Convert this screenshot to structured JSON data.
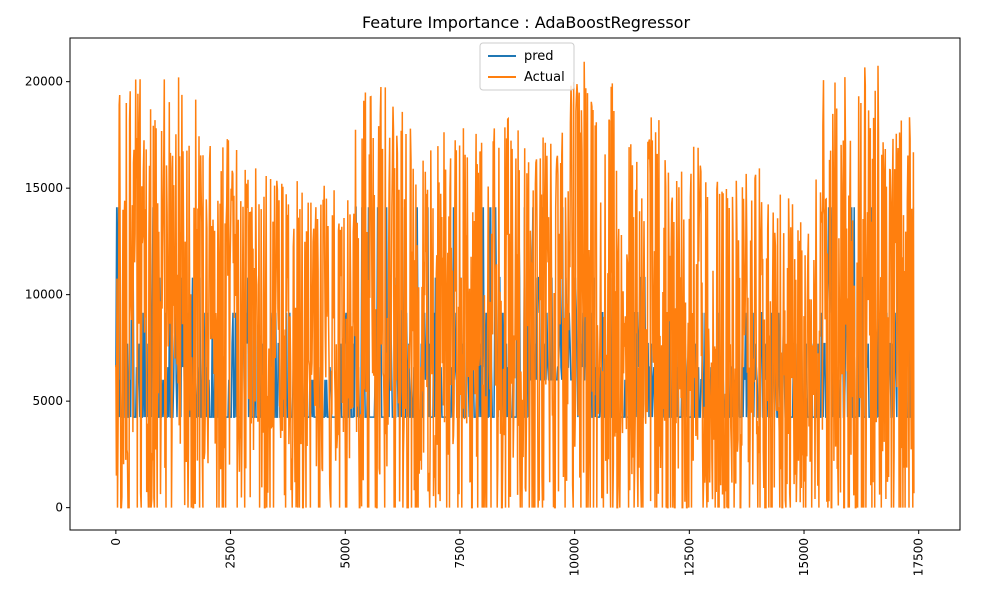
{
  "chart_data": {
    "type": "line",
    "title": "Feature Importance : AdaBoostRegressor",
    "xlabel": "",
    "ylabel": "",
    "xlim": [
      -1000,
      18400
    ],
    "ylim": [
      -1050,
      22050
    ],
    "xticks": [
      0,
      2500,
      5000,
      7500,
      10000,
      12500,
      15000,
      17500
    ],
    "xtick_labels": [
      "0",
      "2500",
      "5000",
      "7500",
      "10000",
      "12500",
      "15000",
      "17500"
    ],
    "xtick_rotation": 90,
    "yticks": [
      0,
      5000,
      10000,
      15000,
      20000
    ],
    "ytick_labels": [
      "0",
      "5000",
      "10000",
      "15000",
      "20000"
    ],
    "grid": false,
    "legend_position": "top-center",
    "n_points": 17379,
    "pred_levels": [
      4250,
      6000,
      6600,
      7700,
      9150,
      10800,
      14100
    ],
    "series": [
      {
        "name": "pred",
        "color": "#1f77b4",
        "segments": [
          {
            "start": 0,
            "end": 1400,
            "min": 4250,
            "max": 14100
          },
          {
            "start": 1400,
            "end": 3000,
            "min": 4250,
            "max": 10800
          },
          {
            "start": 3000,
            "end": 4000,
            "min": 4250,
            "max": 9150
          },
          {
            "start": 4000,
            "end": 4900,
            "min": 4250,
            "max": 6600
          },
          {
            "start": 4900,
            "end": 5200,
            "min": 4250,
            "max": 9150
          },
          {
            "start": 5200,
            "end": 9000,
            "min": 4250,
            "max": 14100
          },
          {
            "start": 9000,
            "end": 10000,
            "min": 6000,
            "max": 14100
          },
          {
            "start": 10000,
            "end": 11800,
            "min": 4250,
            "max": 10800
          },
          {
            "start": 11800,
            "end": 13600,
            "min": 4250,
            "max": 9150
          },
          {
            "start": 13600,
            "end": 15500,
            "min": 4250,
            "max": 9150
          },
          {
            "start": 15500,
            "end": 16500,
            "min": 4250,
            "max": 14100
          },
          {
            "start": 16500,
            "end": 17400,
            "min": 4250,
            "max": 14100
          }
        ]
      },
      {
        "name": "Actual",
        "color": "#ff7f0e",
        "segments": [
          {
            "start": 0,
            "end": 900,
            "min": 0,
            "max": 20600
          },
          {
            "start": 900,
            "end": 1900,
            "min": 0,
            "max": 20500
          },
          {
            "start": 1900,
            "end": 2700,
            "min": 0,
            "max": 18400
          },
          {
            "start": 2700,
            "end": 3400,
            "min": 0,
            "max": 16300
          },
          {
            "start": 3400,
            "end": 4000,
            "min": 0,
            "max": 15700
          },
          {
            "start": 4000,
            "end": 5200,
            "min": 0,
            "max": 15300
          },
          {
            "start": 5200,
            "end": 6300,
            "min": 0,
            "max": 20300
          },
          {
            "start": 6300,
            "end": 7300,
            "min": 0,
            "max": 18600
          },
          {
            "start": 7300,
            "end": 8300,
            "min": 0,
            "max": 18500
          },
          {
            "start": 8300,
            "end": 9000,
            "min": 0,
            "max": 18400
          },
          {
            "start": 9000,
            "end": 9800,
            "min": 0,
            "max": 18600
          },
          {
            "start": 9800,
            "end": 10900,
            "min": 0,
            "max": 21000
          },
          {
            "start": 10900,
            "end": 11900,
            "min": 0,
            "max": 18600
          },
          {
            "start": 11900,
            "end": 13200,
            "min": 0,
            "max": 17000
          },
          {
            "start": 13200,
            "end": 14400,
            "min": 0,
            "max": 16200
          },
          {
            "start": 14400,
            "end": 15400,
            "min": 0,
            "max": 15600
          },
          {
            "start": 15400,
            "end": 16700,
            "min": 0,
            "max": 20800
          },
          {
            "start": 16700,
            "end": 17400,
            "min": 0,
            "max": 18600
          }
        ]
      }
    ]
  }
}
